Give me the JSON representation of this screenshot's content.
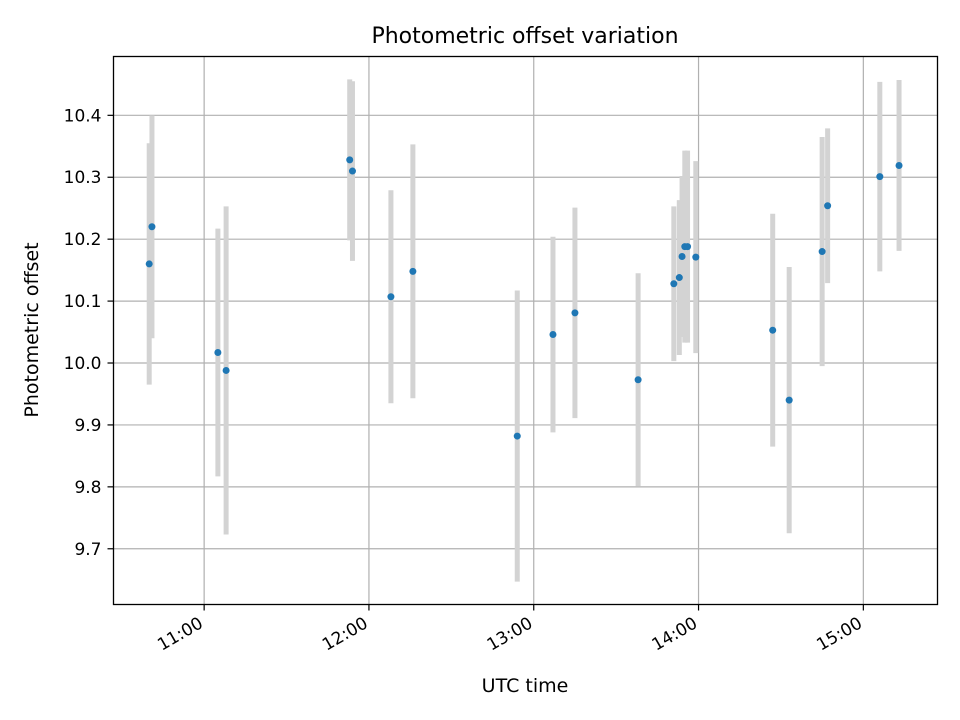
{
  "chart_data": {
    "type": "scatter",
    "title": "Photometric offset variation",
    "xlabel": "UTC time",
    "ylabel": "Photometric offset",
    "x_unit": "time of day (HH:MM)",
    "xlim": [
      "10:27",
      "15:27"
    ],
    "ylim": [
      9.61,
      10.495
    ],
    "xticks": [
      "11:00",
      "12:00",
      "13:00",
      "14:00",
      "15:00"
    ],
    "yticks": [
      9.7,
      9.8,
      9.9,
      10.0,
      10.1,
      10.2,
      10.3,
      10.4
    ],
    "ytick_labels": [
      "9.7",
      "9.8",
      "9.9",
      "10.0",
      "10.1",
      "10.2",
      "10.3",
      "10.4"
    ],
    "grid": true,
    "point_color": "#1f77b4",
    "errorbar_color": "#d3d3d3",
    "points": [
      {
        "x": "10:40",
        "y": 10.16,
        "err": 0.195
      },
      {
        "x": "10:41",
        "y": 10.22,
        "err": 0.18
      },
      {
        "x": "11:05",
        "y": 10.017,
        "err": 0.2
      },
      {
        "x": "11:08",
        "y": 9.988,
        "err": 0.265
      },
      {
        "x": "11:53",
        "y": 10.328,
        "err": 0.13
      },
      {
        "x": "11:54",
        "y": 10.31,
        "err": 0.145
      },
      {
        "x": "12:08",
        "y": 10.107,
        "err": 0.172
      },
      {
        "x": "12:16",
        "y": 10.148,
        "err": 0.205
      },
      {
        "x": "12:54",
        "y": 9.882,
        "err": 0.235
      },
      {
        "x": "13:07",
        "y": 10.046,
        "err": 0.158
      },
      {
        "x": "13:15",
        "y": 10.081,
        "err": 0.17
      },
      {
        "x": "13:38",
        "y": 9.973,
        "err": 0.172
      },
      {
        "x": "13:51",
        "y": 10.128,
        "err": 0.125
      },
      {
        "x": "13:53",
        "y": 10.138,
        "err": 0.125
      },
      {
        "x": "13:54",
        "y": 10.172,
        "err": 0.13
      },
      {
        "x": "13:55",
        "y": 10.188,
        "err": 0.155
      },
      {
        "x": "13:56",
        "y": 10.188,
        "err": 0.155
      },
      {
        "x": "13:59",
        "y": 10.171,
        "err": 0.155
      },
      {
        "x": "14:27",
        "y": 10.053,
        "err": 0.188
      },
      {
        "x": "14:33",
        "y": 9.94,
        "err": 0.215
      },
      {
        "x": "14:45",
        "y": 10.18,
        "err": 0.185
      },
      {
        "x": "14:47",
        "y": 10.254,
        "err": 0.125
      },
      {
        "x": "15:06",
        "y": 10.301,
        "err": 0.153
      },
      {
        "x": "15:13",
        "y": 10.319,
        "err": 0.138
      }
    ]
  }
}
